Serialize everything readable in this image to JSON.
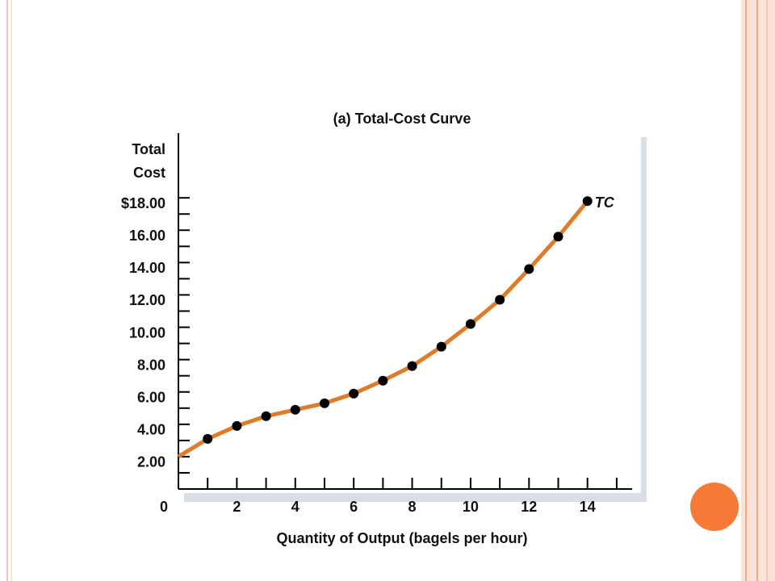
{
  "chart_data": {
    "type": "line",
    "title": "(a) Total-Cost Curve",
    "y_label": [
      "Total",
      "Cost"
    ],
    "x_label": "Quantity of Output (bagels per hour)",
    "x": [
      0,
      1,
      2,
      3,
      4,
      5,
      6,
      7,
      8,
      9,
      10,
      11,
      12,
      13,
      14
    ],
    "series": [
      {
        "name": "TC",
        "color": "#e07b2a",
        "values": [
          2.0,
          3.1,
          3.9,
          4.5,
          4.9,
          5.3,
          5.9,
          6.7,
          7.6,
          8.8,
          10.2,
          11.7,
          13.6,
          15.6,
          17.8
        ]
      }
    ],
    "xlim": [
      0,
      15.5
    ],
    "ylim": [
      0,
      22
    ],
    "xticks": [
      0,
      2,
      4,
      6,
      8,
      10,
      12,
      14
    ],
    "yticks": [
      {
        "value": 2,
        "label": "2.00"
      },
      {
        "value": 4,
        "label": "4.00"
      },
      {
        "value": 6,
        "label": "6.00"
      },
      {
        "value": 8,
        "label": "8.00"
      },
      {
        "value": 10,
        "label": "10.00"
      },
      {
        "value": 12,
        "label": "12.00"
      },
      {
        "value": 14,
        "label": "14.00"
      },
      {
        "value": 16,
        "label": "16.00"
      },
      {
        "value": 18,
        "label": "$18.00"
      }
    ]
  }
}
